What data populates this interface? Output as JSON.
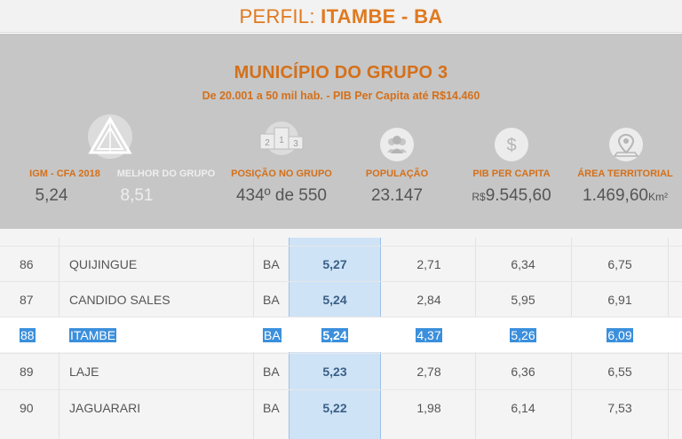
{
  "header": {
    "prefix": "PERFIL: ",
    "name": "ITAMBE - BA"
  },
  "profile": {
    "group_title": "MUNICÍPIO DO GRUPO 3",
    "group_subtitle": "De 20.001 a 50 mil hab. - PIB Per Capita até R$14.460",
    "stats": {
      "igm": {
        "label": "IGM - CFA 2018",
        "value": "5,24"
      },
      "best": {
        "label": "MELHOR DO GRUPO",
        "value": "8,51"
      },
      "position": {
        "label": "POSIÇÃO NO GRUPO",
        "value": "434º de 550"
      },
      "population": {
        "label": "POPULAÇÃO",
        "value": "23.147"
      },
      "gdp": {
        "label": "PIB PER CAPITA",
        "currency": "R$",
        "value": "9.545,60"
      },
      "area": {
        "label": "ÁREA TERRITORIAL",
        "value": "1.469,60",
        "unit": "Km²"
      }
    },
    "icons": [
      "igm-triangle-icon",
      "podium-icon",
      "people-icon",
      "dollar-icon",
      "map-pin-icon"
    ]
  },
  "table": {
    "rows": [
      {
        "rank": "86",
        "city": "QUIJINGUE",
        "uf": "BA",
        "score": "5,27",
        "v1": "2,71",
        "v2": "6,34",
        "v3": "6,75",
        "selected": false
      },
      {
        "rank": "87",
        "city": "CANDIDO SALES",
        "uf": "BA",
        "score": "5,24",
        "v1": "2,84",
        "v2": "5,95",
        "v3": "6,91",
        "selected": false
      },
      {
        "rank": "88",
        "city": "ITAMBE",
        "uf": "BA",
        "score": "5,24",
        "v1": "4,37",
        "v2": "5,26",
        "v3": "6,09",
        "selected": true
      },
      {
        "rank": "89",
        "city": "LAJE",
        "uf": "BA",
        "score": "5,23",
        "v1": "2,78",
        "v2": "6,36",
        "v3": "6,55",
        "selected": false
      },
      {
        "rank": "90",
        "city": "JAGUARARI",
        "uf": "BA",
        "score": "5,22",
        "v1": "1,98",
        "v2": "6,14",
        "v3": "7,53",
        "selected": false
      }
    ]
  },
  "colors": {
    "accent": "#d4701a",
    "panel": "#c6c6c6",
    "highlight_col": "#cfe3f7",
    "selection": "#3b8fdc"
  }
}
